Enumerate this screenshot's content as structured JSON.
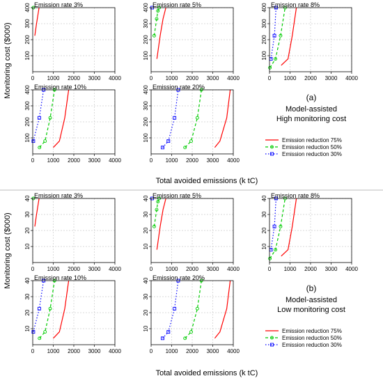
{
  "figure": {
    "x_axis_label": "Total avoided emissions (k tC)",
    "y_axis_label": "Monitoring cost ($000)",
    "series_colors": [
      "#ff0000",
      "#00cc00",
      "#0000ff"
    ],
    "series_line_styles": [
      "solid",
      "dashed",
      "dotted"
    ],
    "series_markers": [
      "none",
      "circle",
      "square"
    ]
  },
  "chart_data": [
    {
      "type": "line",
      "label": "(a)",
      "annotation": [
        "Model-assisted",
        "High monitoring cost"
      ],
      "legend": {
        "entries": [
          "Emission reduction 75%",
          "Emission reduction 50%",
          "Emission reduction 30%"
        ],
        "placement": "right"
      },
      "xlim": [
        0,
        4000
      ],
      "x_ticks": [
        "0",
        "1000",
        "2000",
        "3000",
        "4000"
      ],
      "ylim": [
        0,
        400
      ],
      "y_ticks": [
        "100",
        "200",
        "300",
        "400"
      ],
      "grid": true,
      "panels": [
        {
          "title": "Emission rate 3%",
          "series": [
            {
              "x": [
                100,
                180,
                240,
                310
              ],
              "y": [
                225,
                295,
                345,
                400
              ]
            },
            {
              "x": [
                30
              ],
              "y": [
                400
              ]
            },
            {
              "x": [],
              "y": []
            }
          ]
        },
        {
          "title": "Emission rate 5%",
          "series": [
            {
              "x": [
                280,
                440,
                580,
                720
              ],
              "y": [
                80,
                225,
                330,
                400
              ]
            },
            {
              "x": [
                150,
                270,
                330,
                390
              ],
              "y": [
                225,
                330,
                380,
                400
              ]
            },
            {
              "x": [
                50
              ],
              "y": [
                400
              ]
            }
          ]
        },
        {
          "title": "Emission rate 8%",
          "series": [
            {
              "x": [
                570,
                900,
                1110,
                1310
              ],
              "y": [
                40,
                80,
                225,
                400
              ]
            },
            {
              "x": [
                20,
                290,
                540,
                760
              ],
              "y": [
                25,
                80,
                225,
                400
              ]
            },
            {
              "x": [
                70,
                240,
                320
              ],
              "y": [
                80,
                225,
                400
              ]
            }
          ]
        },
        {
          "title": "Emission rate 10%",
          "series": [
            {
              "x": [
                1000,
                1300,
                1560,
                1750
              ],
              "y": [
                40,
                80,
                225,
                400
              ]
            },
            {
              "x": [
                330,
                600,
                850,
                1060
              ],
              "y": [
                40,
                80,
                225,
                400
              ]
            },
            {
              "x": [
                30,
                320,
                530
              ],
              "y": [
                80,
                225,
                400
              ]
            }
          ]
        },
        {
          "title": "Emission rate 20%",
          "series": [
            {
              "x": [
                3100,
                3350,
                3680,
                3850
              ],
              "y": [
                40,
                80,
                225,
                400
              ]
            },
            {
              "x": [
                1650,
                1950,
                2250,
                2450
              ],
              "y": [
                40,
                80,
                225,
                400
              ]
            },
            {
              "x": [
                560,
                840,
                1140,
                1320
              ],
              "y": [
                40,
                80,
                225,
                400
              ]
            }
          ]
        }
      ]
    },
    {
      "type": "line",
      "label": "(b)",
      "annotation": [
        "Model-assisted",
        "Low monitoring cost"
      ],
      "legend": {
        "entries": [
          "Emission reduction 75%",
          "Emission reduction 50%",
          "Emission reduction 30%"
        ],
        "placement": "right"
      },
      "xlim": [
        0,
        4000
      ],
      "x_ticks": [
        "0",
        "1000",
        "2000",
        "3000",
        "4000"
      ],
      "ylim": [
        0,
        40
      ],
      "y_ticks": [
        "10",
        "20",
        "30",
        "40"
      ],
      "grid": true,
      "panels": [
        {
          "title": "Emission rate 3%",
          "series": [
            {
              "x": [
                100,
                180,
                240,
                310
              ],
              "y": [
                22.5,
                29.5,
                34.5,
                40
              ]
            },
            {
              "x": [
                30
              ],
              "y": [
                40
              ]
            },
            {
              "x": [],
              "y": []
            }
          ]
        },
        {
          "title": "Emission rate 5%",
          "series": [
            {
              "x": [
                280,
                440,
                580,
                720
              ],
              "y": [
                8,
                22.5,
                33,
                40
              ]
            },
            {
              "x": [
                150,
                270,
                330,
                390
              ],
              "y": [
                22.5,
                33,
                38,
                40
              ]
            },
            {
              "x": [
                50
              ],
              "y": [
                40
              ]
            }
          ]
        },
        {
          "title": "Emission rate 8%",
          "series": [
            {
              "x": [
                570,
                900,
                1110,
                1310
              ],
              "y": [
                4,
                8,
                22.5,
                40
              ]
            },
            {
              "x": [
                20,
                290,
                540,
                760
              ],
              "y": [
                2.5,
                8,
                22.5,
                40
              ]
            },
            {
              "x": [
                70,
                240,
                320
              ],
              "y": [
                8,
                22.5,
                40
              ]
            }
          ]
        },
        {
          "title": "Emission rate 10%",
          "series": [
            {
              "x": [
                1000,
                1300,
                1560,
                1750
              ],
              "y": [
                4,
                8,
                22.5,
                40
              ]
            },
            {
              "x": [
                330,
                600,
                850,
                1060
              ],
              "y": [
                4,
                8,
                22.5,
                40
              ]
            },
            {
              "x": [
                30,
                320,
                530
              ],
              "y": [
                8,
                22.5,
                40
              ]
            }
          ]
        },
        {
          "title": "Emission rate 20%",
          "series": [
            {
              "x": [
                3100,
                3350,
                3680,
                3850
              ],
              "y": [
                4,
                8,
                22.5,
                40
              ]
            },
            {
              "x": [
                1650,
                1950,
                2250,
                2450
              ],
              "y": [
                4,
                8,
                22.5,
                40
              ]
            },
            {
              "x": [
                560,
                840,
                1140,
                1320
              ],
              "y": [
                4,
                8,
                22.5,
                40
              ]
            }
          ]
        }
      ]
    }
  ]
}
